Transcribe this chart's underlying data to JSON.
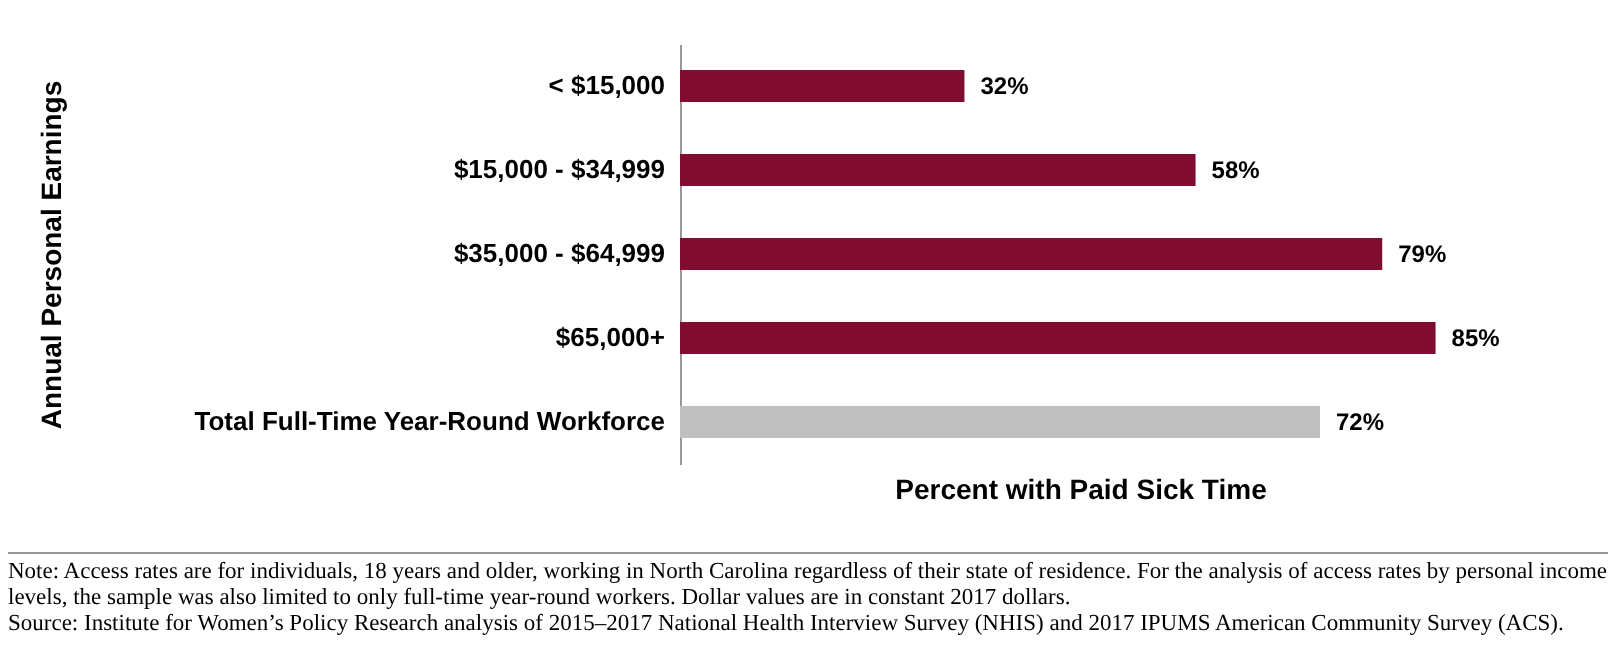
{
  "chart_data": {
    "type": "bar",
    "orientation": "horizontal",
    "categories": [
      "< $15,000",
      "$15,000 - $34,999",
      "$35,000 - $64,999",
      "$65,000+",
      "Total Full-Time Year-Round Workforce"
    ],
    "values": [
      32,
      58,
      79,
      85,
      72
    ],
    "value_labels": [
      "32%",
      "58%",
      "79%",
      "85%",
      "72%"
    ],
    "colors": [
      "#800d2f",
      "#800d2f",
      "#800d2f",
      "#800d2f",
      "#bfbfbf"
    ],
    "xlabel": "Percent with Paid Sick Time",
    "ylabel": "Annual Personal Earnings",
    "annotations": [
      "Note: Access rates are for individuals, 18 years and older, working in North Carolina regardless of their state of residence. For the analysis of access rates by personal income levels, the sample was also limited to only full-time year-round workers. Dollar values are in constant 2017 dollars.",
      "Source: Institute for Women’s Policy Research analysis of 2015–2017 National Health Interview Survey (NHIS) and 2017 IPUMS American Community Survey (ACS)."
    ],
    "grid": false,
    "legend": false
  }
}
